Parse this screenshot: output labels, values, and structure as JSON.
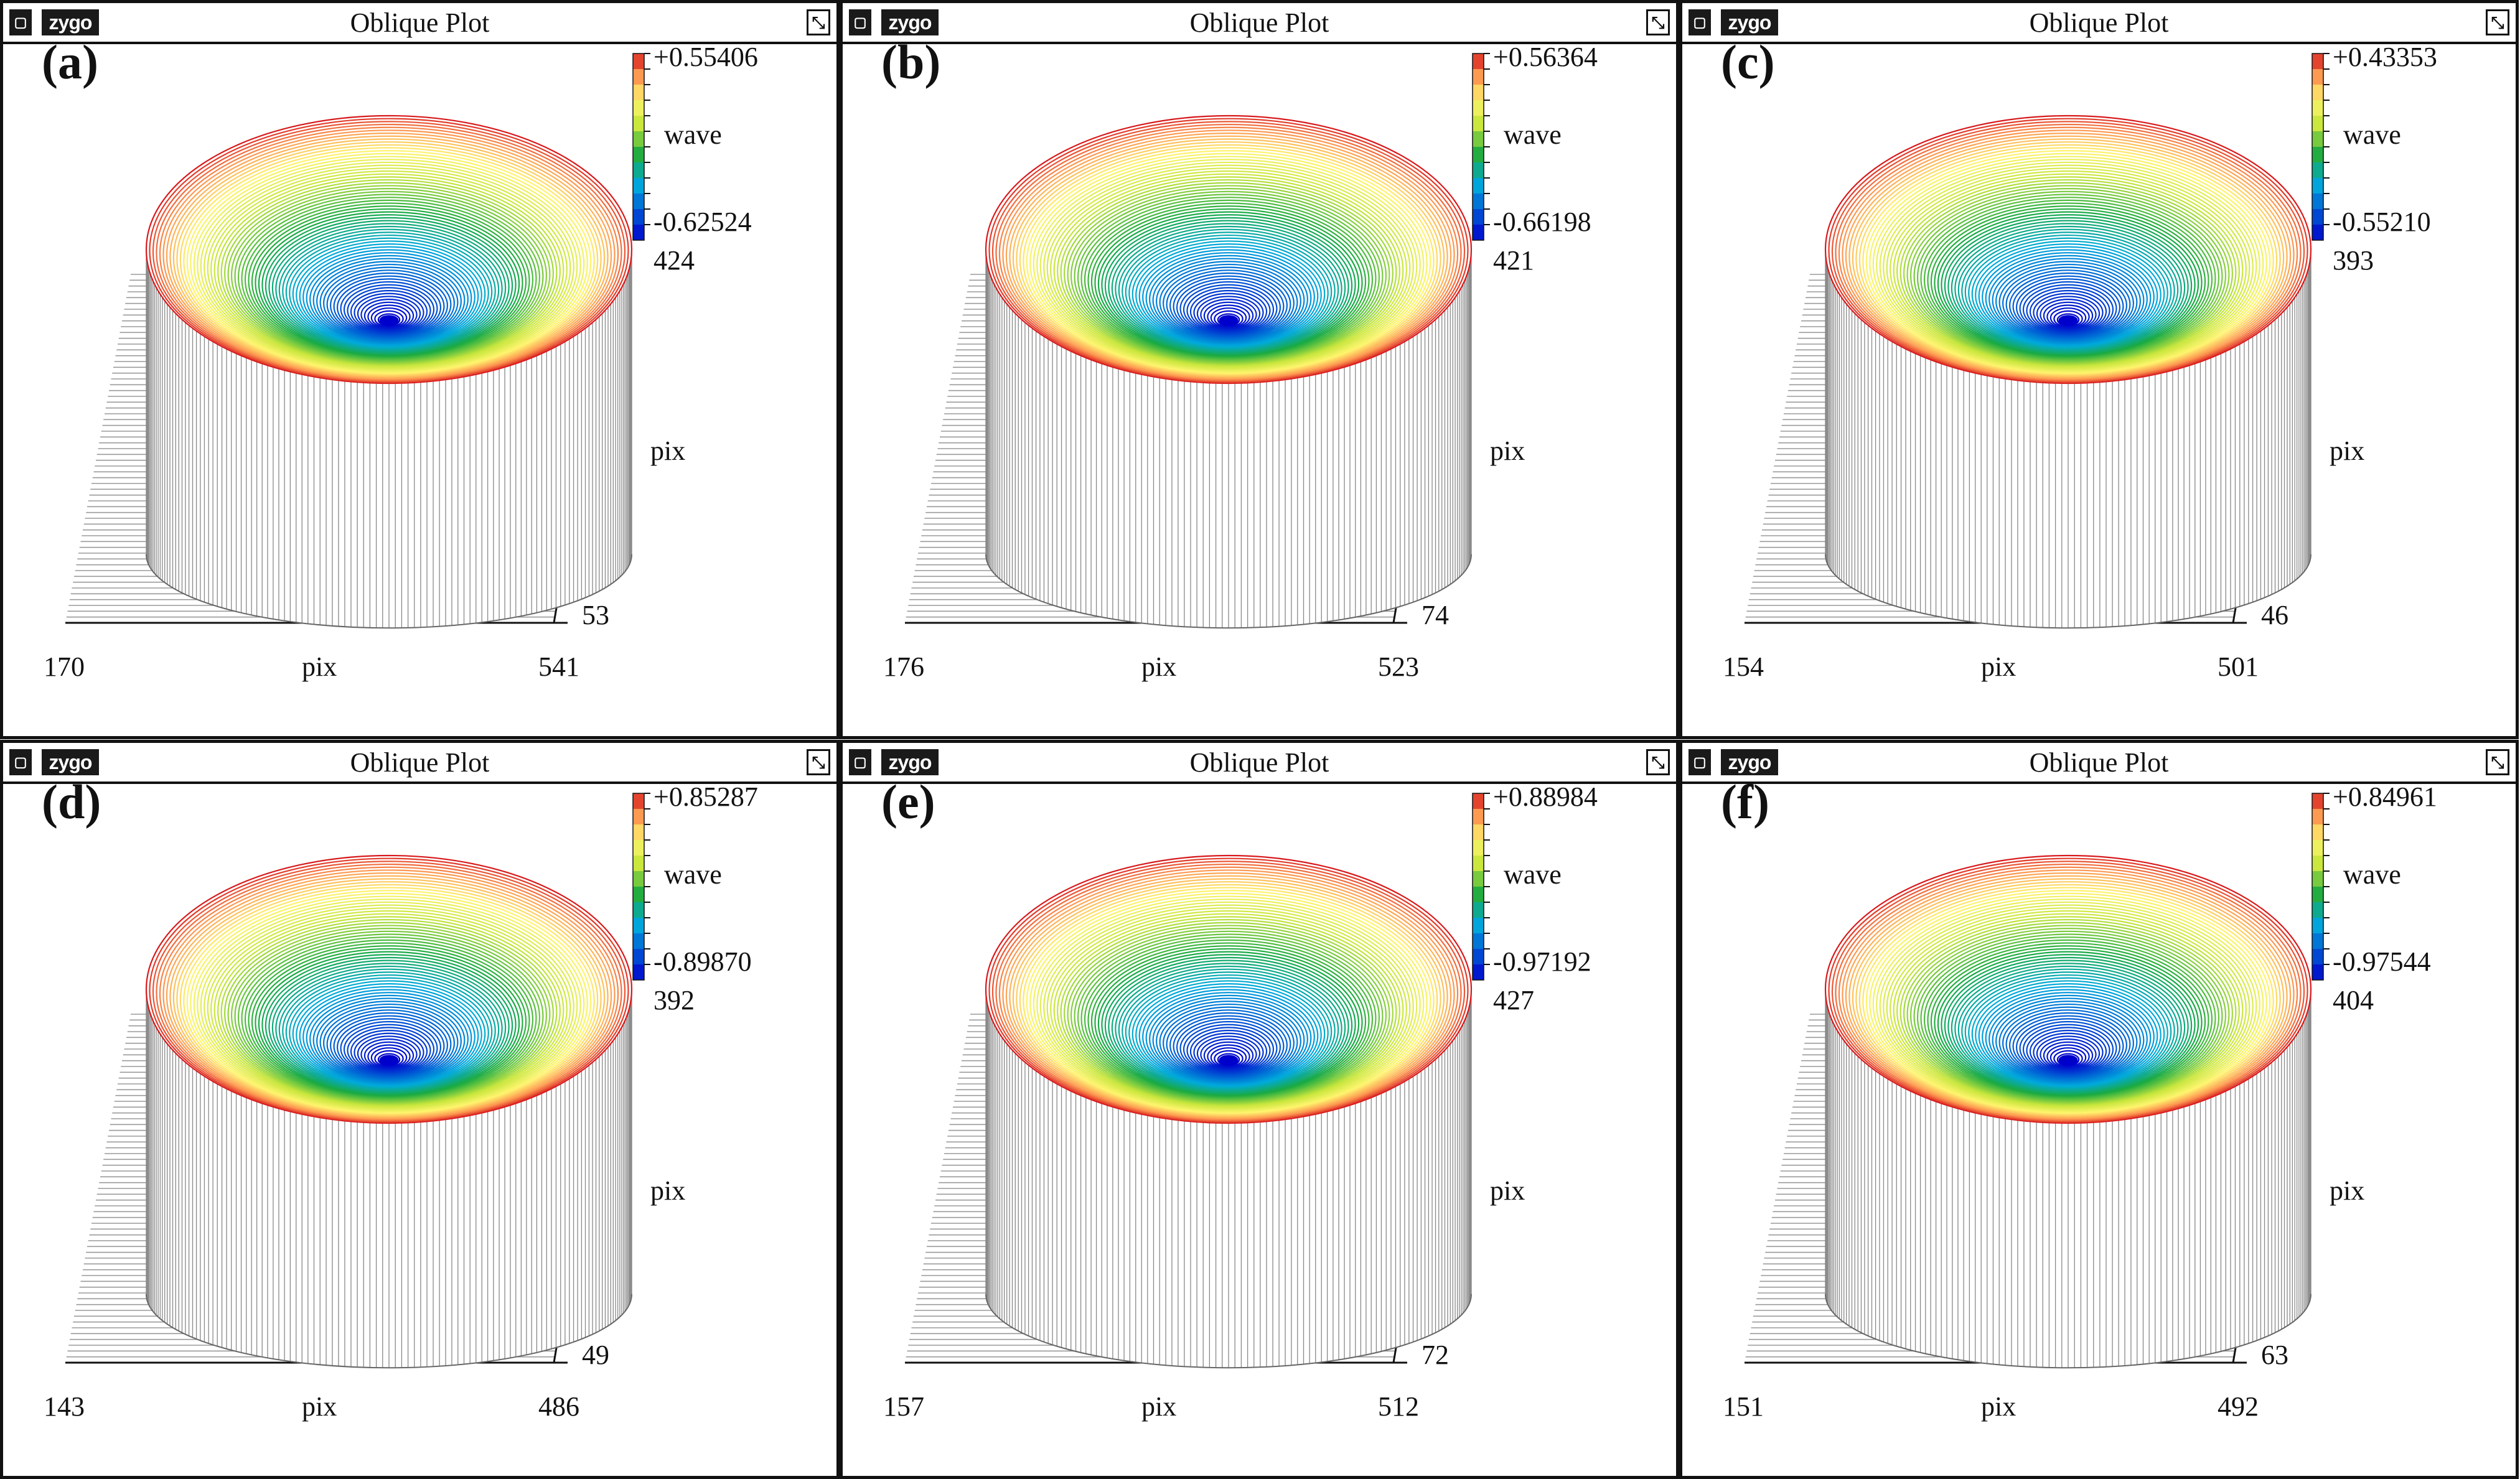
{
  "window_title": "Oblique Plot",
  "logo_text": "zygo",
  "sys_glyph": "▢",
  "win_glyph": "⤡",
  "colors": {
    "scale_top": "#d7191c",
    "scale_mid1": "#fdae61",
    "scale_mid2": "#ffff66",
    "scale_mid3": "#1a9641",
    "scale_bottom": "#0000cc",
    "wall": "#888888",
    "frame": "#111111"
  },
  "chart_data": [
    {
      "type": "surface",
      "label": "(a)",
      "title": "Oblique Plot",
      "zunit": "wave",
      "zmax": "+0.55406",
      "zmin": "-0.62524",
      "xmin": "170",
      "xmax": "541",
      "xlabel": "pix",
      "ymin": "53",
      "ymax": "424",
      "ylabel": "pix"
    },
    {
      "type": "surface",
      "label": "(b)",
      "title": "Oblique Plot",
      "zunit": "wave",
      "zmax": "+0.56364",
      "zmin": "-0.66198",
      "xmin": "176",
      "xmax": "523",
      "xlabel": "pix",
      "ymin": "74",
      "ymax": "421",
      "ylabel": "pix"
    },
    {
      "type": "surface",
      "label": "(c)",
      "title": "Oblique Plot",
      "zunit": "wave",
      "zmax": "+0.43353",
      "zmin": "-0.55210",
      "xmin": "154",
      "xmax": "501",
      "xlabel": "pix",
      "ymin": "46",
      "ymax": "393",
      "ylabel": "pix"
    },
    {
      "type": "surface",
      "label": "(d)",
      "title": "Oblique Plot",
      "zunit": "wave",
      "zmax": "+0.85287",
      "zmin": "-0.89870",
      "xmin": "143",
      "xmax": "486",
      "xlabel": "pix",
      "ymin": "49",
      "ymax": "392",
      "ylabel": "pix"
    },
    {
      "type": "surface",
      "label": "(e)",
      "title": "Oblique Plot",
      "zunit": "wave",
      "zmax": "+0.88984",
      "zmin": "-0.97192",
      "xmin": "157",
      "xmax": "512",
      "xlabel": "pix",
      "ymin": "72",
      "ymax": "427",
      "ylabel": "pix"
    },
    {
      "type": "surface",
      "label": "(f)",
      "title": "Oblique Plot",
      "zunit": "wave",
      "zmax": "+0.84961",
      "zmin": "-0.97544",
      "xmin": "151",
      "xmax": "492",
      "xlabel": "pix",
      "ymin": "63",
      "ymax": "404",
      "ylabel": "pix"
    }
  ]
}
